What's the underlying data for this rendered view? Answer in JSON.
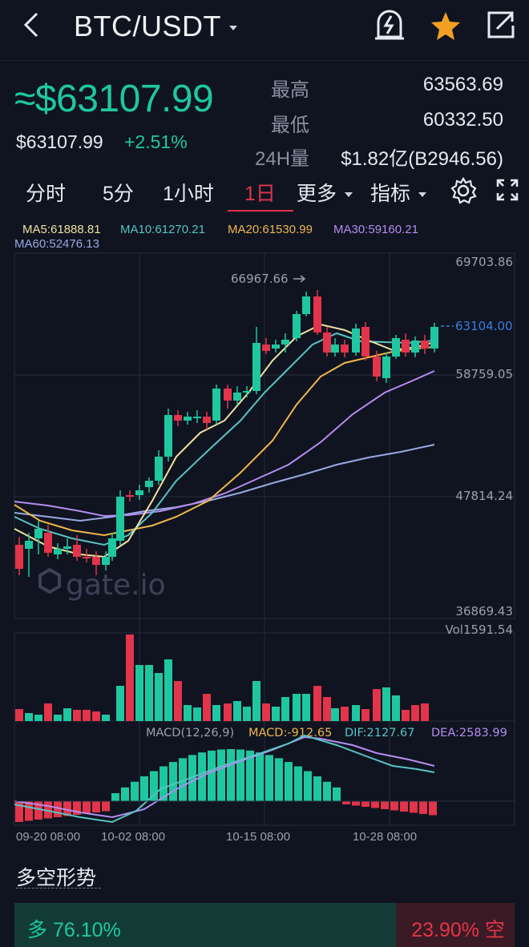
{
  "header": {
    "pair": "BTC/USDT"
  },
  "price": {
    "main": "≈$63107.99",
    "usd": "$63107.99",
    "change": "+2.51%"
  },
  "stats": {
    "high_label": "最高",
    "high_value": "63563.69",
    "low_label": "最低",
    "low_value": "60332.50",
    "vol_label": "24H量",
    "vol_value": "$1.82亿(B2946.56)"
  },
  "tabs": [
    {
      "label": "分时"
    },
    {
      "label": "5分"
    },
    {
      "label": "1小时"
    },
    {
      "label": "1日"
    },
    {
      "label": "更多"
    },
    {
      "label": "指标"
    }
  ],
  "ma_legend": {
    "ma5": "MA5:61888.81",
    "ma10": "MA10:61270.21",
    "ma20": "MA20:61530.99",
    "ma30": "MA30:59160.21",
    "ma60": "MA60:52476.13"
  },
  "chart": {
    "y_labels": [
      "69703.86",
      "58759.05",
      "47814.24",
      "36869.43"
    ],
    "peak_label": "66967.66",
    "current_price_label": "63104.00",
    "vol_label": "Vol1591.54",
    "macd_label": "MACD(12,26,9)",
    "macd_value": "MACD:-912.65",
    "dif_value": "DIF:2127.67",
    "dea_value": "DEA:2583.99",
    "dates": [
      "09-20 08:00",
      "10-02 08:00",
      "10-15 08:00",
      "10-28 08:00"
    ],
    "watermark": "gate.io"
  },
  "longshort": {
    "title": "多空形势",
    "long": "多 76.10%",
    "short": "23.90% 空"
  },
  "colors": {
    "up": "#1fc7a0",
    "down": "#e2344a",
    "ma5": "#f0e0a0",
    "ma10": "#59c3c3",
    "ma20": "#f0b64a",
    "ma30": "#b58cf0",
    "ma60": "#9aa8e0"
  }
}
